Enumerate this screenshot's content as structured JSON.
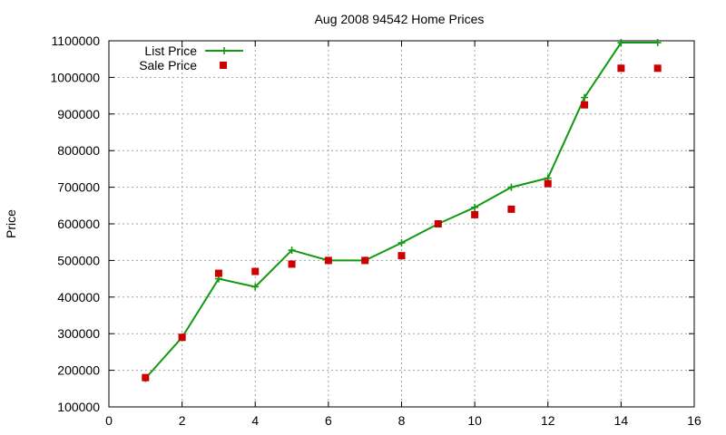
{
  "chart_data": {
    "type": "line",
    "title": "Aug 2008 94542 Home Prices",
    "xlabel": "",
    "ylabel": "Price",
    "xlim": [
      0,
      16
    ],
    "ylim": [
      100000,
      1100000
    ],
    "xticks": [
      0,
      2,
      4,
      6,
      8,
      10,
      12,
      14,
      16
    ],
    "yticks": [
      100000,
      200000,
      300000,
      400000,
      500000,
      600000,
      700000,
      800000,
      900000,
      1000000,
      1100000
    ],
    "xtick_labels": [
      "0",
      "2",
      "4",
      "6",
      "8",
      "10",
      "12",
      "14",
      "16"
    ],
    "ytick_labels": [
      "100000",
      "200000",
      "300000",
      "400000",
      "500000",
      "600000",
      "700000",
      "800000",
      "900000",
      "1000000",
      "1100000"
    ],
    "grid": true,
    "legend": "top-left",
    "series": [
      {
        "name": "List Price",
        "style": "linespoints",
        "marker": "plus",
        "color": "#119911",
        "x": [
          1,
          2,
          3,
          4,
          5,
          6,
          7,
          8,
          9,
          10,
          11,
          12,
          13,
          14,
          15
        ],
        "y": [
          178000,
          290000,
          450000,
          428000,
          528000,
          500000,
          500000,
          548000,
          600000,
          645000,
          700000,
          725000,
          945000,
          1095000,
          1095000
        ]
      },
      {
        "name": "Sale Price",
        "style": "points",
        "marker": "square",
        "color": "#cc0000",
        "x": [
          1,
          2,
          3,
          4,
          5,
          6,
          7,
          8,
          9,
          10,
          11,
          12,
          13,
          14,
          15
        ],
        "y": [
          180000,
          290000,
          465000,
          470000,
          490000,
          500000,
          500000,
          513000,
          600000,
          625000,
          640000,
          710000,
          925000,
          1025000,
          1025000
        ]
      }
    ]
  }
}
